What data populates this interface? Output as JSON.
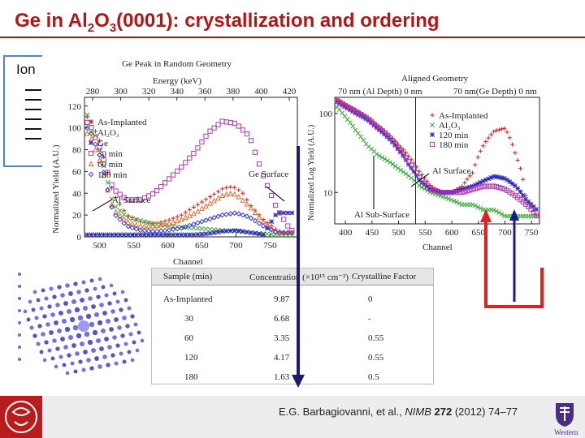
{
  "slide": {
    "title_pre": "Ge in Al",
    "title_sub1": "2",
    "title_mid": "O",
    "title_sub2": "3",
    "title_post": "(0001): crystallization and ordering",
    "ion_label": "Ion",
    "citation_pre": "E.G. Barbagiovanni, et al., ",
    "citation_journal": "NIMB",
    "citation_volume": "272",
    "citation_post": " (2012) 74–77",
    "right_logo_text": "Western",
    "accent_color": "#b01818"
  },
  "chart_data": [
    {
      "type": "scatter",
      "title": "Ge Peak in Random Geometry",
      "top_axis_label": "Energy (keV)",
      "top_ticks": [
        "280",
        "300",
        "320",
        "340",
        "360",
        "380",
        "400",
        "420"
      ],
      "xlabel": "Channel",
      "ylabel": "Normalized Yield (A.U.)",
      "x_ticks": [
        500,
        550,
        600,
        650,
        700,
        750
      ],
      "y_ticks": [
        0,
        20,
        40,
        60,
        80,
        100,
        120
      ],
      "xlim": [
        478,
        790
      ],
      "ylim": [
        0,
        128
      ],
      "legend": [
        "As-Implanted",
        "Al₂O₃",
        "Ge",
        "30 min",
        "60 min",
        "180 min"
      ],
      "annotations": [
        "Ge Surface",
        "Al Surface"
      ],
      "series": [
        {
          "name": "As-Implanted",
          "color": "#d42020",
          "marker": "plus",
          "x": [
            485,
            500,
            520,
            540,
            560,
            580,
            600,
            620,
            640,
            660,
            680,
            690,
            700,
            710,
            720,
            740,
            760,
            780
          ],
          "y": [
            110,
            88,
            40,
            20,
            14,
            12,
            15,
            20,
            28,
            36,
            44,
            46,
            45,
            40,
            30,
            16,
            6,
            2
          ]
        },
        {
          "name": "Al₂O₃",
          "color": "#3aaa3a",
          "marker": "x",
          "x": [
            485,
            500,
            520,
            540,
            560,
            580,
            600,
            620,
            640,
            660,
            680,
            700,
            720,
            740,
            760,
            780
          ],
          "y": [
            112,
            80,
            30,
            18,
            15,
            12,
            10,
            9,
            8,
            7,
            6,
            5,
            4,
            3,
            2,
            1
          ]
        },
        {
          "name": "Ge",
          "color": "#2a2ab4",
          "marker": "star",
          "x": [
            640,
            660,
            680,
            700,
            720,
            740,
            760
          ],
          "y": [
            2,
            3,
            5,
            6,
            4,
            2,
            22
          ]
        },
        {
          "name": "30 min",
          "color": "#b03ab0",
          "marker": "square",
          "x": [
            485,
            500,
            520,
            540,
            560,
            580,
            600,
            620,
            640,
            660,
            680,
            700,
            720,
            740,
            760,
            780
          ],
          "y": [
            105,
            82,
            44,
            34,
            34,
            40,
            52,
            64,
            78,
            96,
            106,
            104,
            92,
            56,
            26,
            6
          ]
        },
        {
          "name": "60 min",
          "color": "#e07030",
          "marker": "triangle",
          "x": [
            485,
            500,
            520,
            540,
            560,
            580,
            600,
            620,
            640,
            660,
            680,
            690,
            700,
            720,
            740,
            760
          ],
          "y": [
            95,
            70,
            25,
            14,
            10,
            10,
            12,
            16,
            22,
            30,
            38,
            40,
            39,
            28,
            14,
            4
          ]
        },
        {
          "name": "180 min",
          "color": "#3a3acc",
          "marker": "diamond",
          "x": [
            485,
            500,
            520,
            540,
            560,
            580,
            600,
            620,
            640,
            660,
            680,
            700,
            720,
            740,
            760
          ],
          "y": [
            100,
            75,
            22,
            10,
            6,
            5,
            6,
            8,
            12,
            16,
            20,
            22,
            18,
            10,
            4
          ]
        }
      ]
    },
    {
      "type": "scatter",
      "title": "Aligned Geometry",
      "top_axis_label_left": "70 nm (Al Depth) 0 nm",
      "top_axis_label_right": "70 nm(Ge Depth) 0 nm",
      "xlabel": "Channel",
      "ylabel": "Normalized Log Yield (A.U.)",
      "x_ticks": [
        400,
        450,
        500,
        550,
        600,
        650,
        700,
        750
      ],
      "y_ticks": [
        10,
        100
      ],
      "xlim": [
        380,
        765
      ],
      "ylim": [
        4,
        160
      ],
      "legend": [
        "As-Implanted",
        "Al₂O₃",
        "120 min",
        "180 min"
      ],
      "annotations": [
        "Al Surface",
        "Al Sub-Surface"
      ],
      "series": [
        {
          "name": "As-Implanted",
          "color": "#d42020",
          "marker": "plus",
          "x": [
            385,
            400,
            420,
            440,
            460,
            480,
            500,
            520,
            540,
            560,
            580,
            600,
            620,
            640,
            660,
            680,
            700,
            720,
            740,
            760
          ],
          "y": [
            150,
            130,
            110,
            90,
            70,
            55,
            40,
            28,
            18,
            12,
            10,
            10,
            12,
            18,
            40,
            60,
            65,
            30,
            8,
            5
          ]
        },
        {
          "name": "Al₂O₃",
          "color": "#3aaa3a",
          "marker": "x",
          "x": [
            385,
            400,
            420,
            440,
            460,
            480,
            500,
            520,
            540,
            560,
            580,
            600,
            620,
            640,
            660,
            680,
            700,
            720,
            740,
            760
          ],
          "y": [
            120,
            90,
            60,
            40,
            30,
            25,
            20,
            16,
            12,
            10,
            9,
            8,
            7,
            7,
            6,
            6,
            5,
            5,
            5,
            5
          ]
        },
        {
          "name": "120 min",
          "color": "#2a2ab4",
          "marker": "star",
          "x": [
            385,
            400,
            420,
            440,
            460,
            480,
            500,
            520,
            540,
            560,
            580,
            600,
            620,
            640,
            660,
            680,
            700,
            720,
            740,
            760
          ],
          "y": [
            140,
            120,
            100,
            85,
            65,
            50,
            35,
            22,
            14,
            11,
            10,
            10,
            11,
            12,
            14,
            16,
            15,
            12,
            8,
            6
          ]
        },
        {
          "name": "180 min",
          "color": "#b03ab0",
          "marker": "square",
          "x": [
            385,
            400,
            420,
            440,
            460,
            480,
            500,
            520,
            540,
            560,
            580,
            600,
            620,
            640,
            660,
            680,
            700,
            720,
            740,
            760
          ],
          "y": [
            145,
            125,
            105,
            88,
            68,
            52,
            36,
            24,
            15,
            11,
            10,
            10,
            10,
            11,
            12,
            12,
            11,
            9,
            7,
            5
          ]
        }
      ]
    },
    {
      "type": "table",
      "columns": [
        "Sample (min)",
        "Concentration (×10¹⁵ cm⁻²)",
        "Crystalline Factor"
      ],
      "rows": [
        [
          "As-Implanted",
          "9.87",
          "0"
        ],
        [
          "30",
          "6.68",
          "-"
        ],
        [
          "60",
          "3.35",
          "0.55"
        ],
        [
          "120",
          "4.17",
          "0.55"
        ],
        [
          "180",
          "1.63",
          "0.5"
        ]
      ]
    }
  ]
}
